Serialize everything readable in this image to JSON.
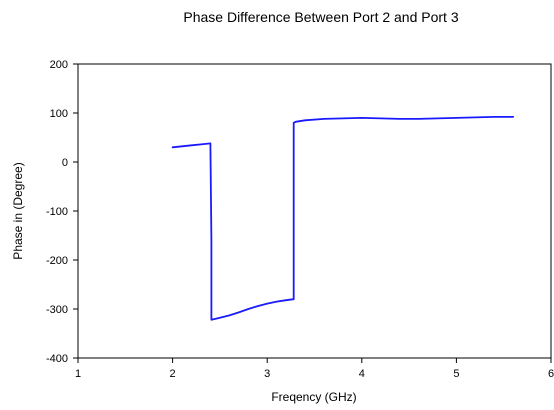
{
  "chart_data": {
    "type": "line",
    "title": "Phase Difference Between Port 2 and Port 3",
    "xlabel": "Freqency (GHz)",
    "ylabel": "Phase in (Degree)",
    "xlim": [
      1,
      6
    ],
    "ylim": [
      -400,
      200
    ],
    "x_ticks": [
      "1",
      "2",
      "3",
      "4",
      "5",
      "6"
    ],
    "y_ticks": [
      "200",
      "100",
      "0",
      "-100",
      "-200",
      "-300",
      "-400"
    ],
    "grid": false,
    "legend": "none",
    "series": [
      {
        "color": "#1a1aff",
        "x": [
          2.0,
          2.1,
          2.2,
          2.3,
          2.4,
          2.4,
          2.41,
          2.41,
          2.5,
          2.6,
          2.7,
          2.8,
          2.9,
          3.0,
          3.1,
          3.2,
          3.28,
          3.28,
          3.3,
          3.4,
          3.6,
          3.8,
          4.0,
          4.2,
          4.4,
          4.6,
          4.8,
          5.0,
          5.2,
          5.4,
          5.6
        ],
        "y": [
          30,
          32,
          34,
          36,
          38,
          37,
          -160,
          -322,
          -318,
          -313,
          -307,
          -300,
          -294,
          -289,
          -285,
          -282,
          -280,
          80,
          82,
          85,
          88,
          89,
          90,
          89,
          88,
          88,
          89,
          90,
          91,
          92,
          92
        ]
      }
    ]
  }
}
